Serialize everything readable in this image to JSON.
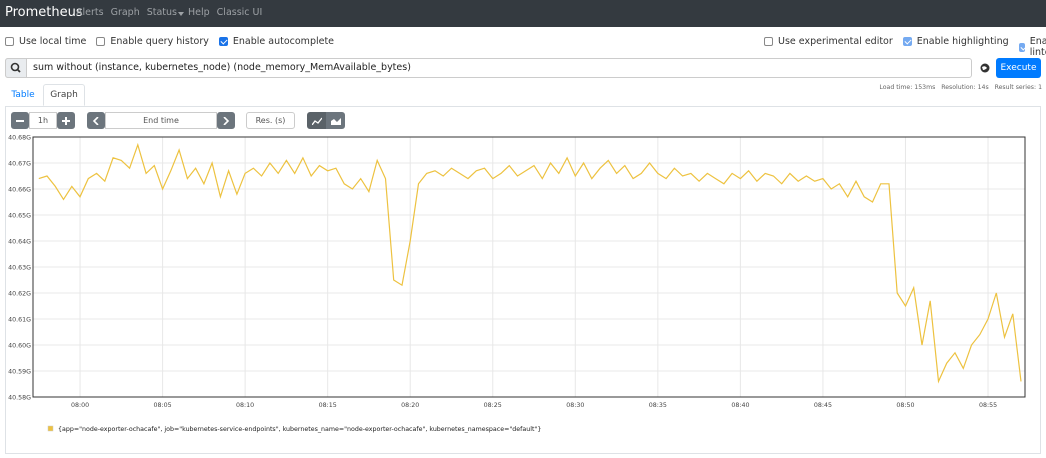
{
  "navbar": {
    "brand": "Prometheus",
    "links": [
      "Alerts",
      "Graph",
      "Status",
      "Help",
      "Classic UI"
    ]
  },
  "options": {
    "left": [
      {
        "label": "Use local time",
        "checked": false
      },
      {
        "label": "Enable query history",
        "checked": false
      },
      {
        "label": "Enable autocomplete",
        "checked": true
      }
    ],
    "right": [
      {
        "label": "Use experimental editor",
        "checked": false
      },
      {
        "label": "Enable highlighting",
        "checked": true
      },
      {
        "label": "Enable linter",
        "checked": true
      }
    ]
  },
  "query": {
    "text": "sum without (instance, kubernetes_node) (node_memory_MemAvailable_bytes)",
    "execute": "Execute"
  },
  "stats": "Load time: 153ms   Resolution: 14s   Result series: 1",
  "tabs": [
    "Table",
    "Graph"
  ],
  "controls": {
    "range": "1h",
    "end_time": "End time",
    "resolution": "Res. (s)"
  },
  "chart_data": {
    "type": "line",
    "grid": true,
    "xlim": [
      477.15,
      537.24
    ],
    "xticks": [
      {
        "value": 480,
        "label": "08:00"
      },
      {
        "value": 485,
        "label": "08:05"
      },
      {
        "value": 490,
        "label": "08:10"
      },
      {
        "value": 495,
        "label": "08:15"
      },
      {
        "value": 500,
        "label": "08:20"
      },
      {
        "value": 505,
        "label": "08:25"
      },
      {
        "value": 510,
        "label": "08:30"
      },
      {
        "value": 515,
        "label": "08:35"
      },
      {
        "value": 520,
        "label": "08:40"
      },
      {
        "value": 525,
        "label": "08:45"
      },
      {
        "value": 530,
        "label": "08:50"
      },
      {
        "value": 535,
        "label": "08:55"
      }
    ],
    "ylim": [
      40.58,
      40.68
    ],
    "yticks": [
      {
        "value": 40.58,
        "label": "40.58G"
      },
      {
        "value": 40.59,
        "label": "40.59G"
      },
      {
        "value": 40.6,
        "label": "40.60G"
      },
      {
        "value": 40.61,
        "label": "40.61G"
      },
      {
        "value": 40.62,
        "label": "40.62G"
      },
      {
        "value": 40.63,
        "label": "40.63G"
      },
      {
        "value": 40.64,
        "label": "40.64G"
      },
      {
        "value": 40.65,
        "label": "40.65G"
      },
      {
        "value": 40.66,
        "label": "40.66G"
      },
      {
        "value": 40.67,
        "label": "40.67G"
      },
      {
        "value": 40.68,
        "label": "40.68G"
      }
    ],
    "x": [
      477.5,
      478,
      478.5,
      479,
      479.5,
      480,
      480.5,
      481,
      481.5,
      482,
      482.5,
      483,
      483.5,
      484,
      484.5,
      485,
      485.5,
      486,
      486.5,
      487,
      487.5,
      488,
      488.5,
      489,
      489.5,
      490,
      490.5,
      491,
      491.5,
      492,
      492.5,
      493,
      493.5,
      494,
      494.5,
      495,
      495.5,
      496,
      496.5,
      497,
      497.5,
      498,
      498.5,
      499,
      499.5,
      500,
      500.5,
      501,
      501.5,
      502,
      502.5,
      503,
      503.5,
      504,
      504.5,
      505,
      505.5,
      506,
      506.5,
      507,
      507.5,
      508,
      508.5,
      509,
      509.5,
      510,
      510.5,
      511,
      511.5,
      512,
      512.5,
      513,
      513.5,
      514,
      514.5,
      515,
      515.5,
      516,
      516.5,
      517,
      517.5,
      518,
      518.5,
      519,
      519.5,
      520,
      520.5,
      521,
      521.5,
      522,
      522.5,
      523,
      523.5,
      524,
      524.5,
      525,
      525.5,
      526,
      526.5,
      527,
      527.5,
      528,
      528.5,
      529,
      529.5,
      530,
      530.5,
      531,
      531.5,
      532,
      532.5,
      533,
      533.5,
      534,
      534.5,
      535,
      535.5,
      536,
      536.5,
      537
    ],
    "series": [
      {
        "name": "{app=\"node-exporter-ochacafe\", job=\"kubernetes-service-endpoints\", kubernetes_name=\"node-exporter-ochacafe\", kubernetes_namespace=\"default\"}",
        "color": "#edc240",
        "values": [
          40.664,
          40.665,
          40.661,
          40.656,
          40.661,
          40.657,
          40.664,
          40.666,
          40.663,
          40.672,
          40.671,
          40.668,
          40.677,
          40.666,
          40.669,
          40.66,
          40.667,
          40.675,
          40.664,
          40.668,
          40.662,
          40.67,
          40.657,
          40.667,
          40.658,
          40.666,
          40.668,
          40.665,
          40.67,
          40.666,
          40.671,
          40.666,
          40.672,
          40.665,
          40.669,
          40.667,
          40.668,
          40.662,
          40.66,
          40.664,
          40.659,
          40.671,
          40.664,
          40.625,
          40.623,
          40.64,
          40.662,
          40.666,
          40.667,
          40.665,
          40.668,
          40.666,
          40.664,
          40.667,
          40.668,
          40.664,
          40.666,
          40.669,
          40.665,
          40.667,
          40.669,
          40.664,
          40.67,
          40.666,
          40.672,
          40.665,
          40.67,
          40.664,
          40.668,
          40.671,
          40.666,
          40.669,
          40.664,
          40.666,
          40.67,
          40.666,
          40.664,
          40.668,
          40.665,
          40.666,
          40.663,
          40.666,
          40.664,
          40.662,
          40.666,
          40.664,
          40.667,
          40.663,
          40.666,
          40.665,
          40.662,
          40.666,
          40.663,
          40.665,
          40.663,
          40.664,
          40.66,
          40.662,
          40.657,
          40.663,
          40.657,
          40.655,
          40.662,
          40.662,
          40.62,
          40.615,
          40.622,
          40.6,
          40.617,
          40.586,
          40.593,
          40.597,
          40.591,
          40.6,
          40.604,
          40.61,
          40.62,
          40.603,
          40.612,
          40.586
        ]
      }
    ]
  }
}
